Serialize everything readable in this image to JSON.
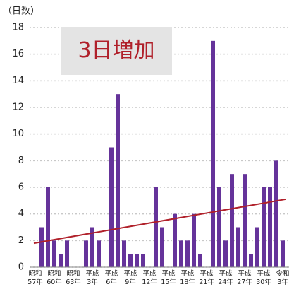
{
  "chart_data": {
    "type": "bar",
    "y_label": "（日数）",
    "annotation": "3日増加",
    "categories": [
      "昭和57年",
      null,
      null,
      "昭和60年",
      null,
      null,
      "昭和63年",
      null,
      null,
      "平成3年",
      null,
      null,
      "平成6年",
      null,
      null,
      "平成9年",
      null,
      null,
      "平成12年",
      null,
      null,
      "平成15年",
      null,
      null,
      "平成18年",
      null,
      null,
      "平成21年",
      null,
      null,
      "平成24年",
      null,
      null,
      "平成27年",
      null,
      null,
      "平成30年",
      null,
      null,
      "令和3年"
    ],
    "values": [
      0,
      3,
      6,
      2,
      1,
      2,
      0,
      0,
      2,
      3,
      2,
      0,
      9,
      13,
      2,
      1,
      1,
      1,
      0,
      6,
      3,
      0,
      4,
      2,
      2,
      4,
      1,
      0,
      17,
      6,
      2,
      7,
      3,
      7,
      1,
      3,
      6,
      6,
      8,
      2
    ],
    "color": "#65339a",
    "trend": {
      "start": 1.8,
      "end": 5.1,
      "color": "#b0202a"
    },
    "ylim": [
      0,
      18
    ],
    "yticks": [
      0,
      2,
      4,
      6,
      8,
      10,
      12,
      14,
      16,
      18
    ],
    "grid": true
  }
}
